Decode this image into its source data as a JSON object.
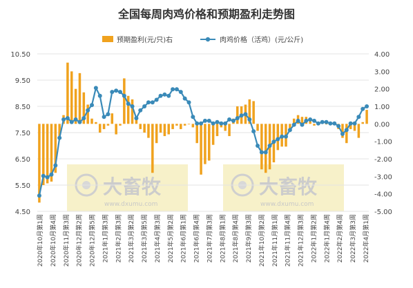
{
  "chart_data": {
    "type": "bar+line",
    "title": "全国每周肉鸡价格和预期盈利走势图",
    "legend": [
      {
        "name": "预期盈利(元/只)右",
        "type": "bar",
        "color": "#F0A21E"
      },
      {
        "name": "肉鸡价格（活鸡）(元/公斤)",
        "type": "line",
        "color": "#3A8AB8"
      }
    ],
    "watermark": "大畜牧 www.dxumu.com",
    "left_axis": {
      "min": 4.5,
      "max": 10.5,
      "ticks": [
        "10.50",
        "9.50",
        "8.50",
        "7.50",
        "6.50",
        "5.50",
        "4.50"
      ]
    },
    "right_axis": {
      "min": -5.0,
      "max": 4.0,
      "ticks": [
        "4.00",
        "3.00",
        "2.00",
        "1.00",
        "0.00",
        "-1.00",
        "-2.00",
        "-3.00",
        "-4.00",
        "-5.00"
      ]
    },
    "x_labels": [
      "2020年10月第1周",
      "2020年10月第4周",
      "2020年11月第3周",
      "2020年12月第2周",
      "2020年12月第5周",
      "2021年1月第3周",
      "2021年2月第3周",
      "2021年3月第2周",
      "2021年3月第5周",
      "2021年4月第3周",
      "2021年5月第2周",
      "2021年6月第1周",
      "2021年6月第4周",
      "2021年7月第3周",
      "2021年8月第1周",
      "2021年8月第4周",
      "2021年9月第3周",
      "2021年10月第2周",
      "2021年11月第1周",
      "2021年11月第4周",
      "2021年12月第3周",
      "2022年1月第2周",
      "2022年1月第4周",
      "2022年2月第4周",
      "2022年3月第3周",
      "2022年4月第1周"
    ],
    "price_series": {
      "name": "肉鸡价格（活鸡）(元/公斤)",
      "values": [
        5.1,
        5.85,
        5.8,
        5.9,
        6.25,
        7.3,
        8.0,
        8.05,
        7.9,
        8.0,
        7.9,
        8.05,
        8.35,
        8.55,
        9.2,
        8.9,
        8.1,
        8.2,
        9.05,
        9.1,
        9.05,
        8.9,
        8.6,
        8.5,
        8.05,
        8.35,
        8.5,
        8.65,
        8.65,
        8.75,
        8.9,
        8.95,
        8.9,
        9.15,
        9.15,
        9.05,
        8.8,
        8.65,
        8.1,
        7.85,
        7.85,
        7.95,
        7.95,
        7.85,
        7.9,
        7.85,
        7.85,
        8.0,
        7.95,
        8.05,
        8.15,
        8.2,
        8.0,
        7.55,
        7.0,
        6.75,
        6.75,
        7.0,
        7.15,
        7.25,
        7.35,
        7.35,
        7.6,
        7.8,
        7.95,
        7.8,
        7.95,
        8.0,
        7.95,
        7.85,
        7.9,
        7.9,
        7.85,
        7.85,
        7.75,
        7.45,
        7.6,
        7.85,
        7.85,
        8.1,
        8.4,
        8.5
      ]
    },
    "profit_series": {
      "name": "预期盈利(元/只)右",
      "values": [
        -4.5,
        -3.5,
        -3.4,
        -3.3,
        -2.8,
        -0.8,
        0.5,
        3.5,
        3.0,
        2.0,
        2.9,
        1.8,
        1.1,
        0.3,
        0.1,
        -0.5,
        -0.3,
        -0.1,
        0.6,
        -0.6,
        -0.1,
        2.6,
        1.6,
        1.4,
        0.3,
        -0.3,
        -0.5,
        -0.8,
        -2.8,
        -1.1,
        -0.5,
        -0.7,
        -0.6,
        -0.3,
        -0.1,
        -0.3,
        -0.1,
        0.0,
        -0.2,
        -1.1,
        -2.9,
        -2.3,
        -2.1,
        -1.2,
        -0.7,
        -0.2,
        -0.4,
        -0.7,
        0.3,
        1.0,
        1.0,
        1.1,
        1.4,
        1.3,
        -0.4,
        -2.6,
        -2.8,
        -2.6,
        -2.2,
        -1.5,
        -1.3,
        -1.3,
        -0.4,
        0.3,
        0.5,
        0.4,
        0.4,
        0.3,
        -0.1,
        0.1,
        0.2,
        0.0,
        0.1,
        0.0,
        -0.3,
        -0.8,
        -1.1,
        -0.3,
        -0.4,
        -0.8,
        0.1,
        0.8
      ]
    }
  }
}
